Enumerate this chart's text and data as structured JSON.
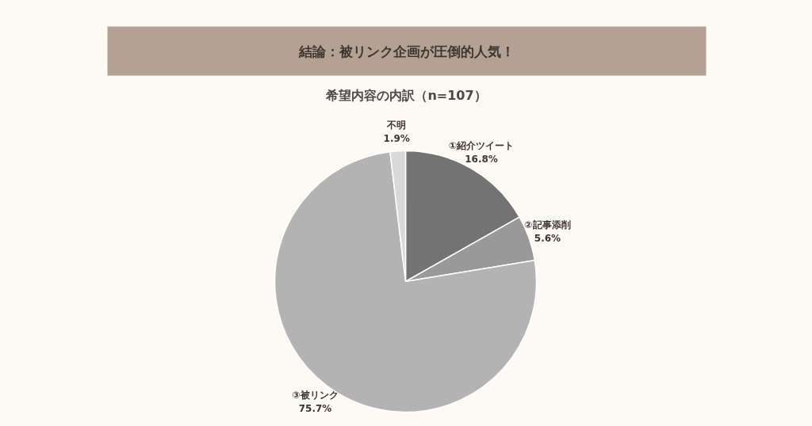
{
  "chart_data": {
    "type": "pie",
    "title": "結論：被リンク企画が圧倒的人気！",
    "subtitle": "希望内容の内訳（n=107）",
    "categories": [
      "①紹介ツイート",
      "②記事添削",
      "③被リンク",
      "不明"
    ],
    "values": [
      16.8,
      5.6,
      75.7,
      1.9
    ],
    "colors": [
      "#737373",
      "#999999",
      "#b3b3b3",
      "#d9d9d9"
    ],
    "value_labels": [
      "16.8%",
      "5.6%",
      "75.7%",
      "1.9%"
    ],
    "legend": false
  }
}
